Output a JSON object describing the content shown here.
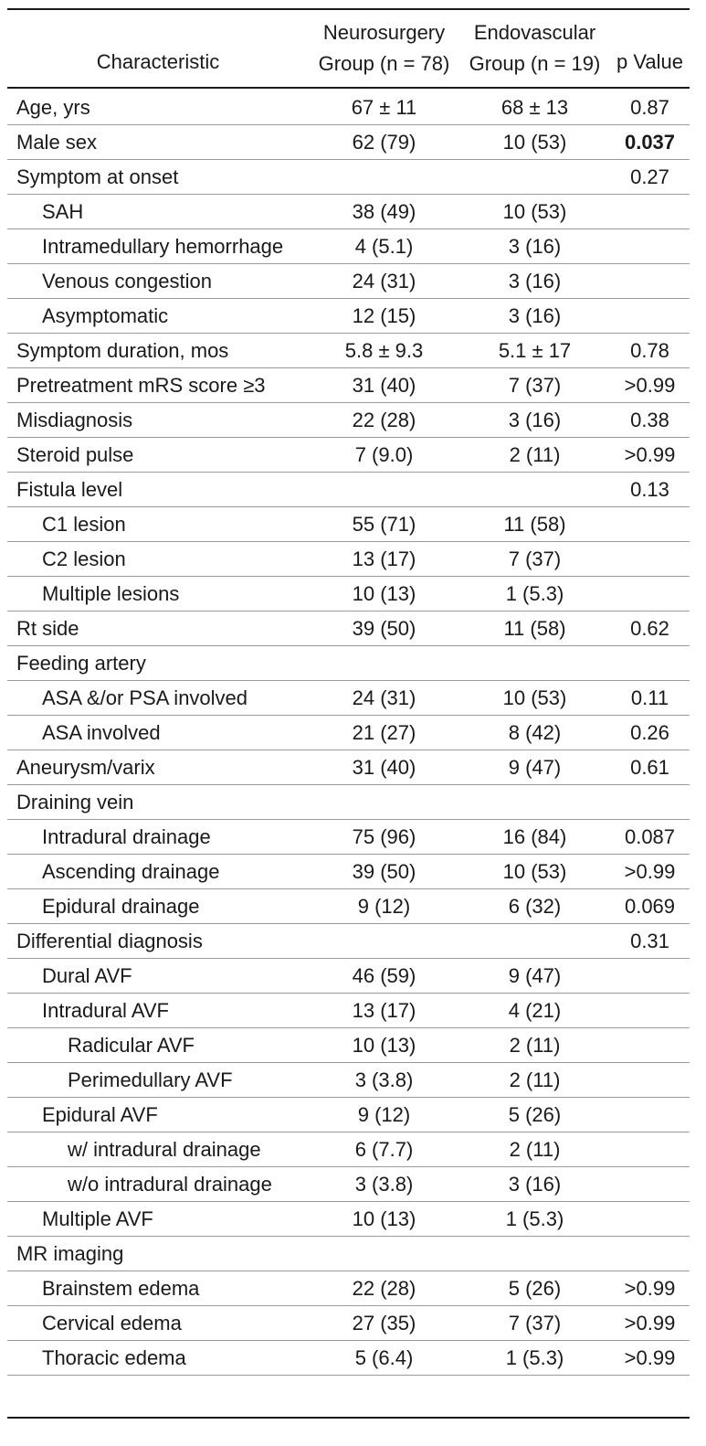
{
  "header": {
    "characteristic": "Characteristic",
    "neurosurgery_line1": "Neurosurgery",
    "neurosurgery_line2": "Group (n = 78)",
    "endovascular_line1": "Endovascular",
    "endovascular_line2": "Group (n = 19)",
    "p_value": "p Value"
  },
  "rows": [
    {
      "label": "Age, yrs",
      "indent": 0,
      "neuro": "67 ± 11",
      "endo": "68 ± 13",
      "p": "0.87"
    },
    {
      "label": "Male sex",
      "indent": 0,
      "neuro": "62 (79)",
      "endo": "10 (53)",
      "p": "0.037",
      "p_bold": true
    },
    {
      "label": "Symptom at onset",
      "indent": 0,
      "neuro": "",
      "endo": "",
      "p": "0.27"
    },
    {
      "label": "SAH",
      "indent": 1,
      "neuro": "38 (49)",
      "endo": "10 (53)",
      "p": ""
    },
    {
      "label": "Intramedullary hemorrhage",
      "indent": 1,
      "neuro": "4 (5.1)",
      "endo": "3 (16)",
      "p": ""
    },
    {
      "label": "Venous congestion",
      "indent": 1,
      "neuro": "24 (31)",
      "endo": "3 (16)",
      "p": ""
    },
    {
      "label": "Asymptomatic",
      "indent": 1,
      "neuro": "12 (15)",
      "endo": "3 (16)",
      "p": ""
    },
    {
      "label": "Symptom duration, mos",
      "indent": 0,
      "neuro": "5.8 ± 9.3",
      "endo": "5.1 ± 17",
      "p": "0.78"
    },
    {
      "label": "Pretreatment mRS score ≥3",
      "indent": 0,
      "neuro": "31 (40)",
      "endo": "7 (37)",
      "p": ">0.99"
    },
    {
      "label": "Misdiagnosis",
      "indent": 0,
      "neuro": "22 (28)",
      "endo": "3 (16)",
      "p": "0.38"
    },
    {
      "label": "Steroid pulse",
      "indent": 0,
      "neuro": "7 (9.0)",
      "endo": "2 (11)",
      "p": ">0.99"
    },
    {
      "label": "Fistula level",
      "indent": 0,
      "neuro": "",
      "endo": "",
      "p": "0.13"
    },
    {
      "label": "C1 lesion",
      "indent": 1,
      "neuro": "55 (71)",
      "endo": "11 (58)",
      "p": ""
    },
    {
      "label": "C2 lesion",
      "indent": 1,
      "neuro": "13 (17)",
      "endo": "7 (37)",
      "p": ""
    },
    {
      "label": "Multiple lesions",
      "indent": 1,
      "neuro": "10 (13)",
      "endo": "1 (5.3)",
      "p": ""
    },
    {
      "label": "Rt side",
      "indent": 0,
      "neuro": "39 (50)",
      "endo": "11 (58)",
      "p": "0.62"
    },
    {
      "label": "Feeding artery",
      "indent": 0,
      "neuro": "",
      "endo": "",
      "p": ""
    },
    {
      "label": "ASA &/or PSA involved",
      "indent": 1,
      "neuro": "24 (31)",
      "endo": "10 (53)",
      "p": "0.11"
    },
    {
      "label": "ASA involved",
      "indent": 1,
      "neuro": "21 (27)",
      "endo": "8 (42)",
      "p": "0.26"
    },
    {
      "label": "Aneurysm/varix",
      "indent": 0,
      "neuro": "31 (40)",
      "endo": "9 (47)",
      "p": "0.61"
    },
    {
      "label": "Draining vein",
      "indent": 0,
      "neuro": "",
      "endo": "",
      "p": ""
    },
    {
      "label": "Intradural drainage",
      "indent": 1,
      "neuro": "75 (96)",
      "endo": "16 (84)",
      "p": "0.087"
    },
    {
      "label": "Ascending drainage",
      "indent": 1,
      "neuro": "39 (50)",
      "endo": "10 (53)",
      "p": ">0.99"
    },
    {
      "label": "Epidural drainage",
      "indent": 1,
      "neuro": "9 (12)",
      "endo": "6 (32)",
      "p": "0.069"
    },
    {
      "label": "Differential diagnosis",
      "indent": 0,
      "neuro": "",
      "endo": "",
      "p": "0.31"
    },
    {
      "label": "Dural AVF",
      "indent": 1,
      "neuro": "46 (59)",
      "endo": "9 (47)",
      "p": ""
    },
    {
      "label": "Intradural AVF",
      "indent": 1,
      "neuro": "13 (17)",
      "endo": "4 (21)",
      "p": ""
    },
    {
      "label": "Radicular AVF",
      "indent": 2,
      "neuro": "10 (13)",
      "endo": "2 (11)",
      "p": ""
    },
    {
      "label": "Perimedullary AVF",
      "indent": 2,
      "neuro": "3 (3.8)",
      "endo": "2 (11)",
      "p": ""
    },
    {
      "label": "Epidural AVF",
      "indent": 1,
      "neuro": "9 (12)",
      "endo": "5 (26)",
      "p": ""
    },
    {
      "label": "w/ intradural drainage",
      "indent": 2,
      "neuro": "6 (7.7)",
      "endo": "2 (11)",
      "p": ""
    },
    {
      "label": "w/o intradural drainage",
      "indent": 2,
      "neuro": "3 (3.8)",
      "endo": "3 (16)",
      "p": ""
    },
    {
      "label": "Multiple AVF",
      "indent": 1,
      "neuro": "10 (13)",
      "endo": "1 (5.3)",
      "p": ""
    },
    {
      "label": "MR imaging",
      "indent": 0,
      "neuro": "",
      "endo": "",
      "p": ""
    },
    {
      "label": "Brainstem edema",
      "indent": 1,
      "neuro": "22 (28)",
      "endo": "5 (26)",
      "p": ">0.99"
    },
    {
      "label": "Cervical edema",
      "indent": 1,
      "neuro": "27 (35)",
      "endo": "7 (37)",
      "p": ">0.99"
    },
    {
      "label": "Thoracic edema",
      "indent": 1,
      "neuro": "5 (6.4)",
      "endo": "1 (5.3)",
      "p": ">0.99"
    }
  ]
}
